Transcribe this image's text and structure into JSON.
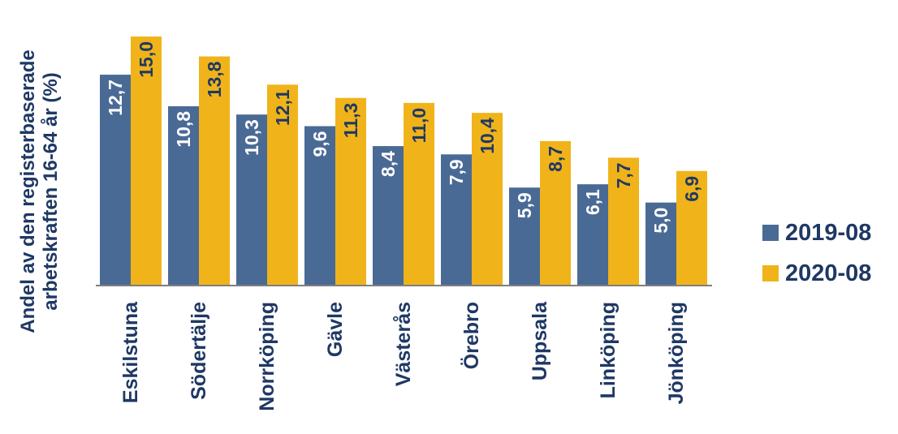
{
  "chart_data": {
    "type": "bar",
    "ylabel": "Andel av den registerbaserade arbetskraften 16-64 år (%)",
    "ylabel_lines": [
      "Andel av den registerbaserade",
      "arbetskraften 16-64 år (%)"
    ],
    "categories": [
      "Eskilstuna",
      "Södertälje",
      "Norrköping",
      "Gävle",
      "Västerås",
      "Örebro",
      "Uppsala",
      "Linköping",
      "Jönköping"
    ],
    "series": [
      {
        "name": "2019-08",
        "color": "#4a6a96",
        "values": [
          12.7,
          10.8,
          10.3,
          9.6,
          8.4,
          7.9,
          5.9,
          6.1,
          5.0
        ],
        "labels": [
          "12,7",
          "10,8",
          "10,3",
          "9,6",
          "8,4",
          "7,9",
          "5,9",
          "6,1",
          "5,0"
        ]
      },
      {
        "name": "2020-08",
        "color": "#f0b31a",
        "values": [
          15.0,
          13.8,
          12.1,
          11.3,
          11.0,
          10.4,
          8.7,
          7.7,
          6.9
        ],
        "labels": [
          "15,0",
          "13,8",
          "12,1",
          "11,3",
          "11,0",
          "10,4",
          "8,7",
          "7,7",
          "6,9"
        ]
      }
    ],
    "ylim": [
      0,
      15.0
    ],
    "grid": false,
    "legend_position": "right"
  }
}
